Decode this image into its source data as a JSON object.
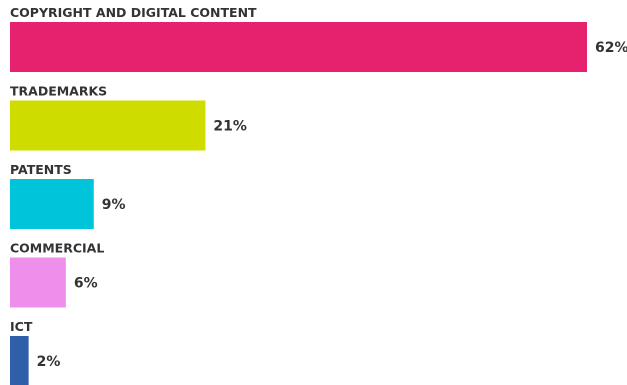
{
  "chart_data": {
    "type": "bar",
    "orientation": "horizontal",
    "categories": [
      "COPYRIGHT AND DIGITAL CONTENT",
      "TRADEMARKS",
      "PATENTS",
      "COMMERCIAL",
      "ICT"
    ],
    "values": [
      62,
      21,
      9,
      6,
      2
    ],
    "value_labels": [
      "62%",
      "21%",
      "9%",
      "6%",
      "2%"
    ],
    "colors": [
      "#e6226f",
      "#cfdc00",
      "#00c4d9",
      "#ee8fec",
      "#2f5fa8"
    ],
    "xlim": [
      0,
      62
    ],
    "grid": false,
    "legend": "none"
  }
}
